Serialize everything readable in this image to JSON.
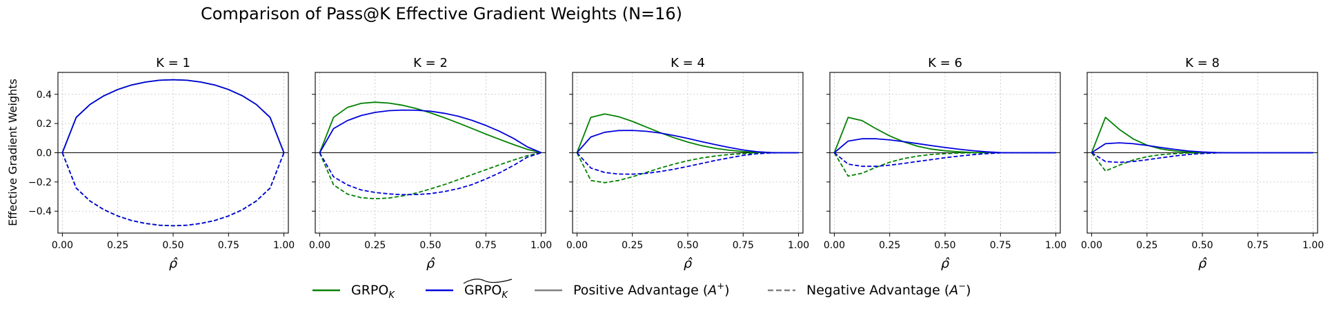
{
  "chart_data": {
    "type": "line",
    "suptitle": "Comparison of Pass@K Effective Gradient Weights (N=16)",
    "ylabel": "Effective Gradient Weights",
    "xlabel_symbol": "ρ̂",
    "xlim": [
      -0.02,
      1.02
    ],
    "ylim": [
      -0.55,
      0.55
    ],
    "xticks": [
      0,
      0.25,
      0.5,
      0.75,
      1.0
    ],
    "xtick_labels": [
      "0.00",
      "0.25",
      "0.50",
      "0.75",
      "1.00"
    ],
    "yticks": [
      -0.4,
      -0.2,
      0.0,
      0.2,
      0.4
    ],
    "ytick_labels": [
      "−0.4",
      "−0.2",
      "0.0",
      "0.2",
      "0.4"
    ],
    "grid": true,
    "x": [
      0,
      0.0625,
      0.125,
      0.1875,
      0.25,
      0.3125,
      0.375,
      0.4375,
      0.5,
      0.5625,
      0.625,
      0.6875,
      0.75,
      0.8125,
      0.875,
      0.9375,
      1.0
    ],
    "colors": {
      "grpo": "#008000",
      "grpo_tilde": "#0000dd",
      "legend_style": "#808080"
    },
    "panels": [
      {
        "title": "K = 1",
        "series": [
          {
            "name": "GRPO_K positive",
            "method": "GRPO_K",
            "style": "solid",
            "values": [
              0,
              0.242,
              0.331,
              0.39,
              0.433,
              0.464,
              0.484,
              0.496,
              0.5,
              0.496,
              0.484,
              0.464,
              0.433,
              0.39,
              0.331,
              0.242,
              0
            ]
          },
          {
            "name": "GRPO_K negative",
            "method": "GRPO_K",
            "style": "dashed",
            "values": [
              0,
              -0.242,
              -0.331,
              -0.39,
              -0.433,
              -0.464,
              -0.484,
              -0.496,
              -0.5,
              -0.496,
              -0.484,
              -0.464,
              -0.433,
              -0.39,
              -0.331,
              -0.242,
              0
            ]
          },
          {
            "name": "GRPO~_K positive",
            "method": "GRPO~_K",
            "style": "solid",
            "values": [
              0,
              0.242,
              0.331,
              0.39,
              0.433,
              0.464,
              0.484,
              0.496,
              0.5,
              0.496,
              0.484,
              0.464,
              0.433,
              0.39,
              0.331,
              0.242,
              0
            ]
          },
          {
            "name": "GRPO~_K negative",
            "method": "GRPO~_K",
            "style": "dashed",
            "values": [
              0,
              -0.242,
              -0.331,
              -0.39,
              -0.433,
              -0.464,
              -0.484,
              -0.496,
              -0.5,
              -0.496,
              -0.484,
              -0.464,
              -0.433,
              -0.39,
              -0.331,
              -0.242,
              0
            ]
          }
        ]
      },
      {
        "title": "K = 2",
        "series": [
          {
            "name": "GRPO_K positive",
            "method": "GRPO_K",
            "style": "solid",
            "values": [
              0,
              0.242,
              0.31,
              0.338,
              0.346,
              0.34,
              0.325,
              0.302,
              0.273,
              0.24,
              0.204,
              0.166,
              0.128,
              0.091,
              0.056,
              0.023,
              0
            ]
          },
          {
            "name": "GRPO_K negative",
            "method": "GRPO_K",
            "style": "dashed",
            "values": [
              0,
              -0.22,
              -0.283,
              -0.308,
              -0.315,
              -0.31,
              -0.295,
              -0.275,
              -0.248,
              -0.218,
              -0.185,
              -0.15,
              -0.116,
              -0.082,
              -0.05,
              -0.02,
              0
            ]
          },
          {
            "name": "GRPO~_K positive",
            "method": "GRPO~_K",
            "style": "solid",
            "values": [
              0,
              0.165,
              0.22,
              0.255,
              0.276,
              0.288,
              0.292,
              0.291,
              0.284,
              0.27,
              0.25,
              0.222,
              0.187,
              0.146,
              0.098,
              0.04,
              0
            ]
          },
          {
            "name": "GRPO~_K negative",
            "method": "GRPO~_K",
            "style": "dashed",
            "values": [
              0,
              -0.165,
              -0.22,
              -0.255,
              -0.272,
              -0.282,
              -0.287,
              -0.286,
              -0.28,
              -0.266,
              -0.246,
              -0.218,
              -0.18,
              -0.137,
              -0.087,
              -0.03,
              0
            ]
          }
        ]
      },
      {
        "title": "K = 4",
        "series": [
          {
            "name": "GRPO_K positive",
            "method": "GRPO_K",
            "style": "solid",
            "values": [
              0,
              0.242,
              0.266,
              0.247,
              0.215,
              0.176,
              0.138,
              0.103,
              0.073,
              0.048,
              0.03,
              0.017,
              0.008,
              0.003,
              0.001,
              0,
              0
            ]
          },
          {
            "name": "GRPO_K negative",
            "method": "GRPO_K",
            "style": "dashed",
            "values": [
              0,
              -0.19,
              -0.205,
              -0.19,
              -0.165,
              -0.135,
              -0.105,
              -0.078,
              -0.055,
              -0.036,
              -0.022,
              -0.012,
              -0.006,
              -0.002,
              -0.001,
              0,
              0
            ]
          },
          {
            "name": "GRPO~_K positive",
            "method": "GRPO~_K",
            "style": "solid",
            "values": [
              0,
              0.108,
              0.14,
              0.152,
              0.153,
              0.147,
              0.135,
              0.118,
              0.098,
              0.076,
              0.055,
              0.036,
              0.019,
              0.007,
              0.001,
              0,
              0
            ]
          },
          {
            "name": "GRPO~_K negative",
            "method": "GRPO~_K",
            "style": "dashed",
            "values": [
              0,
              -0.105,
              -0.135,
              -0.146,
              -0.147,
              -0.141,
              -0.129,
              -0.113,
              -0.094,
              -0.073,
              -0.053,
              -0.035,
              -0.018,
              -0.007,
              -0.001,
              0,
              0
            ]
          }
        ]
      },
      {
        "title": "K = 6",
        "series": [
          {
            "name": "GRPO_K positive",
            "method": "GRPO_K",
            "style": "solid",
            "values": [
              0,
              0.242,
              0.22,
              0.165,
              0.115,
              0.075,
              0.045,
              0.025,
              0.013,
              0.006,
              0.002,
              0.001,
              0,
              0,
              0,
              0,
              0
            ]
          },
          {
            "name": "GRPO_K negative",
            "method": "GRPO_K",
            "style": "dashed",
            "values": [
              0,
              -0.16,
              -0.14,
              -0.1,
              -0.065,
              -0.04,
              -0.023,
              -0.012,
              -0.006,
              -0.002,
              -0.001,
              0,
              0,
              0,
              0,
              0,
              0
            ]
          },
          {
            "name": "GRPO~_K positive",
            "method": "GRPO~_K",
            "style": "solid",
            "values": [
              0,
              0.08,
              0.096,
              0.096,
              0.088,
              0.076,
              0.063,
              0.049,
              0.036,
              0.024,
              0.014,
              0.006,
              0.001,
              0,
              0,
              0,
              0
            ]
          },
          {
            "name": "GRPO~_K negative",
            "method": "GRPO~_K",
            "style": "dashed",
            "values": [
              0,
              -0.078,
              -0.093,
              -0.093,
              -0.085,
              -0.073,
              -0.06,
              -0.047,
              -0.034,
              -0.023,
              -0.013,
              -0.006,
              -0.001,
              0,
              0,
              0,
              0
            ]
          }
        ]
      },
      {
        "title": "K = 8",
        "series": [
          {
            "name": "GRPO_K positive",
            "method": "GRPO_K",
            "style": "solid",
            "values": [
              0,
              0.242,
              0.16,
              0.095,
              0.052,
              0.026,
              0.012,
              0.005,
              0.002,
              0.001,
              0,
              0,
              0,
              0,
              0,
              0,
              0
            ]
          },
          {
            "name": "GRPO_K negative",
            "method": "GRPO_K",
            "style": "dashed",
            "values": [
              0,
              -0.125,
              -0.085,
              -0.05,
              -0.027,
              -0.013,
              -0.006,
              -0.002,
              -0.001,
              0,
              0,
              0,
              0,
              0,
              0,
              0,
              0
            ]
          },
          {
            "name": "GRPO~_K positive",
            "method": "GRPO~_K",
            "style": "solid",
            "values": [
              0,
              0.062,
              0.068,
              0.062,
              0.05,
              0.036,
              0.023,
              0.012,
              0.005,
              0.001,
              0,
              0,
              0,
              0,
              0,
              0,
              0
            ]
          },
          {
            "name": "GRPO~_K negative",
            "method": "GRPO~_K",
            "style": "dashed",
            "values": [
              0,
              -0.06,
              -0.066,
              -0.06,
              -0.048,
              -0.035,
              -0.022,
              -0.012,
              -0.005,
              -0.001,
              0,
              0,
              0,
              0,
              0,
              0,
              0
            ]
          }
        ]
      }
    ],
    "legend": {
      "placement": "bottom-center",
      "entries": [
        {
          "key": "grpo",
          "label_main": "GRPO",
          "label_sub": "K",
          "tilde": false,
          "style": "solid",
          "color_key": "grpo"
        },
        {
          "key": "grpo_tilde",
          "label_main": "GRPO",
          "label_sub": "K",
          "tilde": true,
          "style": "solid",
          "color_key": "grpo_tilde"
        },
        {
          "key": "positive",
          "label_main": "Positive Advantage (",
          "label_math": "A",
          "label_sup": "+",
          "label_end": ")",
          "style": "solid",
          "color_key": "legend_style"
        },
        {
          "key": "negative",
          "label_main": "Negative Advantage (",
          "label_math": "A",
          "label_sup": "−",
          "label_end": ")",
          "style": "dashed",
          "color_key": "legend_style"
        }
      ]
    }
  }
}
